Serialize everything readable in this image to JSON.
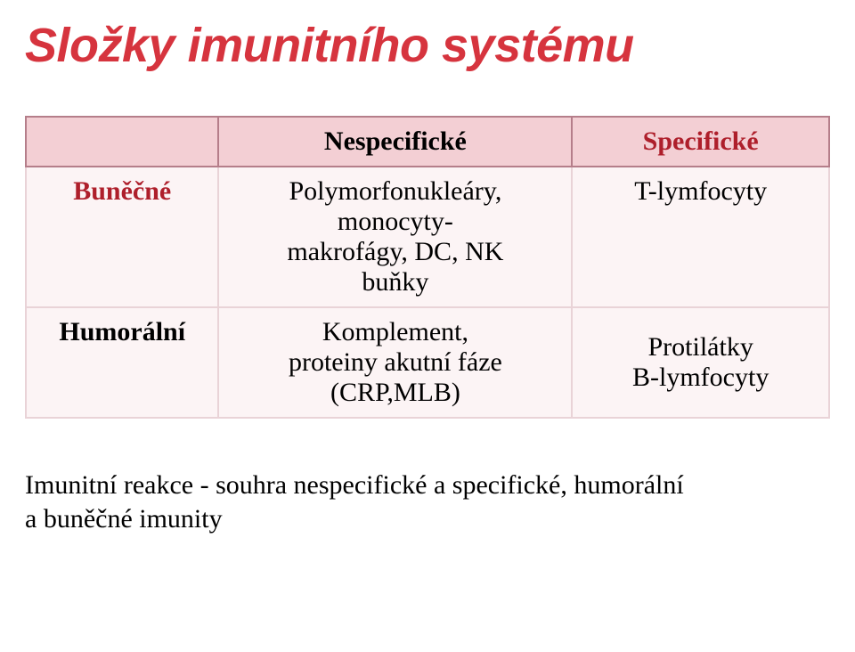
{
  "title": {
    "text": "Složky imunitního systému",
    "color": "#d6343e",
    "fontsize": 54
  },
  "table": {
    "header_bg": "#f3cfd4",
    "header_border": "#b57e8a",
    "body_bg": "#fcf4f5",
    "body_border": "#e9d3d7",
    "text_color": "#000000",
    "accent_color": "#ae1f2b",
    "col_widths": [
      "24%",
      "44%",
      "32%"
    ],
    "header": {
      "blank": "",
      "col1": "Nespecifické",
      "col2": "Specifické"
    },
    "rows": [
      {
        "head": "Buněčné",
        "head_color": "#ae1f2b",
        "c1": "Polymorfonukleáry,\nmonocyty-\nmakrofágy, DC, NK\nbuňky",
        "c2": "T-lymfocyty",
        "c2_vatop": true
      },
      {
        "head": "Humorální",
        "c1": "Komplement,\nproteiny akutní fáze\n(CRP,MLB)",
        "c2": "Protilátky\nB-lymfocyty"
      }
    ]
  },
  "footer": "Imunitní reakce - souhra nespecifické a specifické, humorální\na  buněčné imunity"
}
